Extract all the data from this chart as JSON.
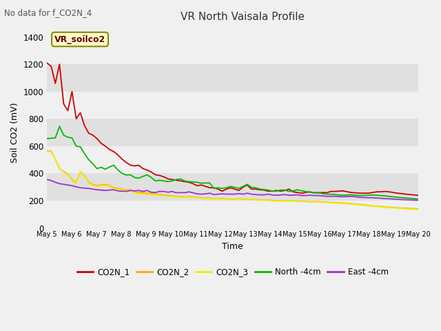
{
  "title": "VR North Vaisala Profile",
  "subtitle": "No data for f_CO2N_4",
  "xlabel": "Time",
  "ylabel": "Soil CO2 (mV)",
  "ylim": [
    0,
    1400
  ],
  "annotation": "VR_soilco2",
  "x_tick_labels": [
    "May 5",
    "May 6",
    "May 7",
    "May 8",
    "May 9",
    "May 10",
    "May 11",
    "May 12",
    "May 13",
    "May 14",
    "May 15",
    "May 16",
    "May 17",
    "May 18",
    "May 19",
    "May 20"
  ],
  "series": {
    "CO2N_1": {
      "color": "#cc0000",
      "data": [
        1210,
        1185,
        1060,
        1200,
        910,
        860,
        1000,
        800,
        845,
        750,
        695,
        680,
        655,
        620,
        600,
        575,
        560,
        535,
        505,
        480,
        460,
        455,
        460,
        435,
        425,
        410,
        390,
        385,
        375,
        360,
        355,
        350,
        345,
        340,
        335,
        325,
        310,
        315,
        305,
        295,
        295,
        285,
        270,
        285,
        295,
        285,
        275,
        300,
        315,
        285,
        285,
        280,
        278,
        270,
        270,
        275,
        270,
        275,
        285,
        265,
        260,
        255,
        260,
        265,
        258,
        258,
        260,
        258,
        268,
        268,
        270,
        272,
        265,
        260,
        258,
        255,
        255,
        255,
        260,
        265,
        265,
        268,
        265,
        260,
        255,
        252,
        248,
        245,
        242,
        240
      ]
    },
    "CO2N_2": {
      "color": "#ffaa00",
      "data": [
        565,
        562,
        505,
        435,
        415,
        395,
        355,
        330,
        415,
        380,
        335,
        318,
        310,
        315,
        320,
        308,
        295,
        290,
        285,
        278,
        280,
        265,
        260,
        258,
        255,
        252,
        250,
        245,
        240,
        238,
        235,
        232,
        230,
        228,
        230,
        228,
        225,
        222,
        220,
        218,
        215,
        215,
        215,
        212,
        210,
        210,
        215,
        210,
        212,
        210,
        208,
        205,
        205,
        205,
        202,
        200,
        200,
        200,
        200,
        200,
        198,
        196,
        195,
        193,
        193,
        193,
        190,
        190,
        188,
        186,
        185,
        183,
        180,
        178,
        175,
        172,
        170,
        165,
        162,
        160,
        158,
        155,
        152,
        150,
        148,
        146,
        145,
        143,
        142,
        140
      ]
    },
    "CO2N_3": {
      "color": "#eeee00",
      "data": [
        560,
        558,
        505,
        435,
        410,
        390,
        350,
        325,
        415,
        375,
        330,
        312,
        305,
        310,
        312,
        303,
        290,
        285,
        280,
        272,
        275,
        258,
        252,
        250,
        248,
        245,
        243,
        240,
        235,
        232,
        230,
        228,
        226,
        225,
        226,
        225,
        222,
        220,
        217,
        215,
        213,
        213,
        212,
        210,
        208,
        208,
        213,
        208,
        210,
        208,
        206,
        203,
        203,
        203,
        200,
        198,
        198,
        198,
        198,
        198,
        196,
        194,
        193,
        191,
        191,
        191,
        188,
        188,
        186,
        183,
        182,
        180,
        177,
        175,
        172,
        169,
        167,
        162,
        160,
        157,
        155,
        152,
        149,
        147,
        145,
        143,
        141,
        139,
        138,
        136
      ]
    },
    "North_4cm": {
      "color": "#00bb00",
      "data": [
        655,
        658,
        660,
        745,
        680,
        665,
        660,
        600,
        595,
        545,
        500,
        470,
        435,
        445,
        430,
        448,
        460,
        425,
        400,
        388,
        390,
        370,
        365,
        378,
        390,
        370,
        345,
        350,
        345,
        340,
        345,
        355,
        360,
        345,
        340,
        338,
        335,
        328,
        330,
        330,
        290,
        295,
        290,
        295,
        305,
        298,
        290,
        305,
        320,
        298,
        295,
        285,
        282,
        278,
        270,
        270,
        278,
        278,
        268,
        272,
        280,
        272,
        268,
        262,
        258,
        260,
        252,
        248,
        248,
        245,
        242,
        240,
        242,
        244,
        240,
        238,
        238,
        240,
        242,
        240,
        238,
        235,
        232,
        228,
        225,
        222,
        220,
        218,
        215,
        212
      ]
    },
    "East_4cm": {
      "color": "#9933cc",
      "data": [
        355,
        348,
        335,
        325,
        320,
        315,
        310,
        302,
        295,
        292,
        290,
        285,
        280,
        278,
        275,
        278,
        280,
        272,
        270,
        268,
        275,
        272,
        275,
        268,
        275,
        262,
        260,
        268,
        268,
        262,
        268,
        258,
        260,
        258,
        265,
        258,
        250,
        248,
        250,
        255,
        245,
        248,
        250,
        248,
        248,
        248,
        252,
        248,
        255,
        248,
        245,
        243,
        243,
        248,
        242,
        240,
        242,
        245,
        240,
        241,
        243,
        238,
        238,
        240,
        238,
        238,
        235,
        232,
        232,
        232,
        230,
        229,
        230,
        232,
        228,
        225,
        223,
        222,
        222,
        220,
        218,
        215,
        214,
        212,
        210,
        208,
        207,
        206,
        204,
        203
      ]
    }
  },
  "legend_labels": [
    "CO2N_1",
    "CO2N_2",
    "CO2N_3",
    "North -4cm",
    "East -4cm"
  ],
  "legend_colors": [
    "#cc0000",
    "#ffaa00",
    "#eeee00",
    "#00bb00",
    "#9933cc"
  ],
  "yticks": [
    0,
    200,
    400,
    600,
    800,
    1000,
    1200,
    1400
  ],
  "band_colors": [
    "#f0f0f0",
    "#e0e0e0"
  ]
}
